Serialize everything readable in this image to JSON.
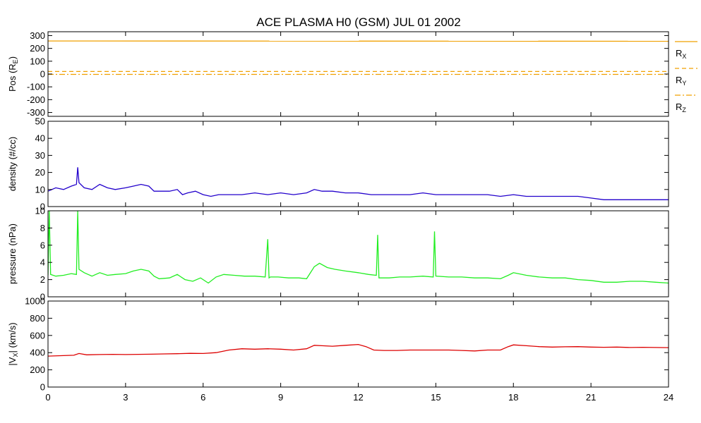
{
  "chart_data": {
    "type": "line",
    "title": "ACE PLASMA H0 (GSM)   JUL 01 2002",
    "x_ticks": [
      "0",
      "3",
      "6",
      "9",
      "12",
      "15",
      "18",
      "21",
      "24"
    ],
    "xlim": [
      0,
      24
    ],
    "panels": [
      {
        "id": "pos",
        "ylabel_main": "Pos (R",
        "ylabel_sub": "E",
        "ylabel_end": ")",
        "ylim": [
          -330,
          330
        ],
        "y_ticks": [
          300,
          200,
          100,
          0,
          -100,
          -200,
          -300
        ],
        "y_tick_labels": [
          "300",
          "200",
          "100",
          "0",
          "-100",
          "-200",
          "-300"
        ],
        "legend": [
          {
            "label": "R",
            "sub": "X",
            "color": "#f0a000",
            "dash": "solid"
          },
          {
            "label": "R",
            "sub": "Y",
            "color": "#f0a000",
            "dash": "dashed"
          },
          {
            "label": "R",
            "sub": "Z",
            "color": "#f0a000",
            "dash": "dashdot"
          }
        ],
        "series": [
          {
            "name": "R_X",
            "color": "#f0a000",
            "dash": "solid",
            "x": [
              0,
              24
            ],
            "values": [
              258,
              256
            ]
          },
          {
            "name": "R_Y",
            "color": "#f0a000",
            "dash": "dashed",
            "x": [
              0,
              24
            ],
            "values": [
              20,
              20
            ]
          },
          {
            "name": "R_Z",
            "color": "#f0a000",
            "dash": "dashdot",
            "x": [
              0,
              24
            ],
            "values": [
              -3,
              -3
            ]
          }
        ]
      },
      {
        "id": "density",
        "ylabel_main": "density (#/cc)",
        "ylim": [
          0,
          50
        ],
        "y_ticks": [
          50,
          40,
          30,
          20,
          10,
          0
        ],
        "y_tick_labels": [
          "50",
          "40",
          "30",
          "20",
          "10",
          "0"
        ],
        "series": [
          {
            "color": "#2200cc",
            "x": [
              0,
              0.3,
              0.6,
              0.9,
              1.1,
              1.15,
              1.2,
              1.4,
              1.7,
              2.0,
              2.3,
              2.6,
              3.0,
              3.3,
              3.6,
              3.9,
              4.1,
              4.3,
              4.7,
              5.0,
              5.2,
              5.4,
              5.7,
              6.0,
              6.3,
              6.6,
              7.0,
              7.5,
              8.0,
              8.5,
              9.0,
              9.5,
              10.0,
              10.3,
              10.6,
              11.0,
              11.5,
              12.0,
              12.5,
              13.0,
              13.5,
              14.0,
              14.5,
              15.0,
              15.5,
              16.0,
              16.5,
              17.0,
              17.5,
              18.0,
              18.5,
              19.0,
              19.5,
              20.0,
              20.5,
              21.0,
              21.5,
              22.0,
              22.5,
              23.0,
              23.5,
              24.0
            ],
            "values": [
              9,
              11,
              10,
              12,
              13,
              23,
              14,
              11,
              10,
              13,
              11,
              10,
              11,
              12,
              13,
              12,
              9,
              9,
              9,
              10,
              7,
              8,
              9,
              7,
              6,
              7,
              7,
              7,
              8,
              7,
              8,
              7,
              8,
              10,
              9,
              9,
              8,
              8,
              7,
              7,
              7,
              7,
              8,
              7,
              7,
              7,
              7,
              7,
              6,
              7,
              6,
              6,
              6,
              6,
              6,
              5,
              4,
              4,
              4,
              4,
              4,
              4
            ]
          }
        ]
      },
      {
        "id": "pressure",
        "ylabel_main": "pressure (nPa)",
        "ylim": [
          0,
          10
        ],
        "y_ticks": [
          10,
          8,
          6,
          4,
          2,
          0
        ],
        "y_tick_labels": [
          "10",
          "8",
          "6",
          "4",
          "2",
          "0"
        ],
        "series": [
          {
            "color": "#22ee22",
            "x": [
              0,
              0.05,
              0.1,
              0.3,
              0.6,
              0.9,
              1.1,
              1.15,
              1.2,
              1.4,
              1.7,
              2.0,
              2.3,
              2.6,
              3.0,
              3.3,
              3.6,
              3.9,
              4.1,
              4.3,
              4.7,
              5.0,
              5.3,
              5.6,
              5.9,
              6.2,
              6.5,
              6.8,
              7.2,
              7.6,
              8.0,
              8.4,
              8.5,
              8.55,
              8.6,
              8.9,
              9.3,
              9.7,
              10.0,
              10.3,
              10.5,
              10.8,
              11.1,
              11.5,
              12.0,
              12.4,
              12.7,
              12.75,
              12.8,
              13.2,
              13.6,
              14.0,
              14.5,
              14.9,
              14.95,
              15.0,
              15.5,
              16.0,
              16.5,
              17.0,
              17.5,
              17.8,
              18.0,
              18.5,
              19.0,
              19.5,
              20.0,
              20.5,
              21.0,
              21.5,
              22.0,
              22.5,
              23.0,
              23.5,
              24.0
            ],
            "values": [
              2.5,
              10,
              2.6,
              2.4,
              2.5,
              2.7,
              2.6,
              10,
              3.2,
              2.8,
              2.4,
              2.8,
              2.5,
              2.6,
              2.7,
              3.0,
              3.2,
              3.0,
              2.4,
              2.1,
              2.2,
              2.6,
              2.0,
              1.8,
              2.2,
              1.6,
              2.3,
              2.6,
              2.5,
              2.4,
              2.4,
              2.3,
              6.7,
              2.2,
              2.3,
              2.3,
              2.2,
              2.2,
              2.1,
              3.5,
              3.9,
              3.4,
              3.2,
              3.0,
              2.8,
              2.6,
              2.5,
              7.2,
              2.2,
              2.2,
              2.3,
              2.3,
              2.4,
              2.3,
              7.6,
              2.4,
              2.3,
              2.3,
              2.2,
              2.2,
              2.1,
              2.5,
              2.8,
              2.5,
              2.3,
              2.2,
              2.2,
              2.0,
              1.9,
              1.7,
              1.7,
              1.8,
              1.8,
              1.7,
              1.6
            ]
          }
        ]
      },
      {
        "id": "vx",
        "ylabel_main": "|V",
        "ylabel_sub": "X",
        "ylabel_end": "| (km/s)",
        "ylim": [
          0,
          1000
        ],
        "y_ticks": [
          1000,
          800,
          600,
          400,
          200,
          0
        ],
        "y_tick_labels": [
          "1000",
          "800",
          "600",
          "400",
          "200",
          "0"
        ],
        "series": [
          {
            "color": "#dd0000",
            "x": [
              0,
              0.5,
              1.0,
              1.2,
              1.5,
              2.0,
              2.5,
              3.0,
              3.5,
              4.0,
              4.5,
              5.0,
              5.5,
              6.0,
              6.5,
              7.0,
              7.5,
              8.0,
              8.5,
              9.0,
              9.5,
              10.0,
              10.3,
              10.6,
              11.0,
              11.5,
              12.0,
              12.3,
              12.6,
              13.0,
              13.5,
              14.0,
              14.5,
              15.0,
              15.5,
              16.0,
              16.5,
              17.0,
              17.5,
              17.8,
              18.0,
              18.5,
              19.0,
              19.5,
              20.0,
              20.5,
              21.0,
              21.5,
              22.0,
              22.5,
              23.0,
              23.5,
              24.0
            ],
            "values": [
              360,
              365,
              370,
              390,
              375,
              378,
              380,
              378,
              380,
              382,
              385,
              388,
              392,
              390,
              400,
              430,
              445,
              440,
              445,
              440,
              430,
              445,
              485,
              480,
              475,
              485,
              495,
              470,
              430,
              425,
              425,
              430,
              430,
              430,
              430,
              425,
              420,
              430,
              430,
              470,
              490,
              480,
              470,
              465,
              468,
              470,
              465,
              462,
              465,
              460,
              462,
              460,
              458
            ]
          }
        ]
      }
    ]
  }
}
